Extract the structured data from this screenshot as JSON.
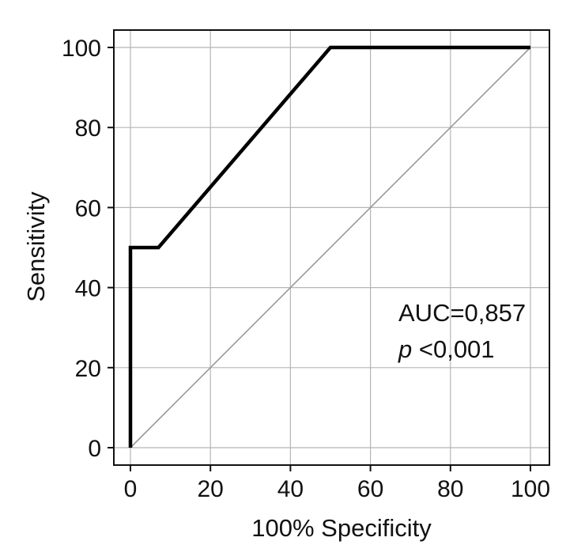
{
  "chart_data": {
    "type": "line",
    "title": "",
    "xlabel": "100% Specificity",
    "ylabel": "Sensitivity",
    "xlim": [
      0,
      100
    ],
    "ylim": [
      0,
      100
    ],
    "xticks": [
      0,
      20,
      40,
      60,
      80,
      100
    ],
    "yticks": [
      0,
      20,
      40,
      60,
      80,
      100
    ],
    "grid": true,
    "series": [
      {
        "color": "#000000",
        "points": [
          [
            0,
            0
          ],
          [
            0,
            50
          ],
          [
            7,
            50
          ],
          [
            50,
            100
          ],
          [
            100,
            100
          ]
        ]
      },
      {
        "color": "#999999",
        "points": [
          [
            0,
            0
          ],
          [
            100,
            100
          ]
        ]
      }
    ],
    "annotations": {
      "auc": "AUC=0,857",
      "p_symbol": "p",
      "p_value": " <0,001"
    }
  }
}
